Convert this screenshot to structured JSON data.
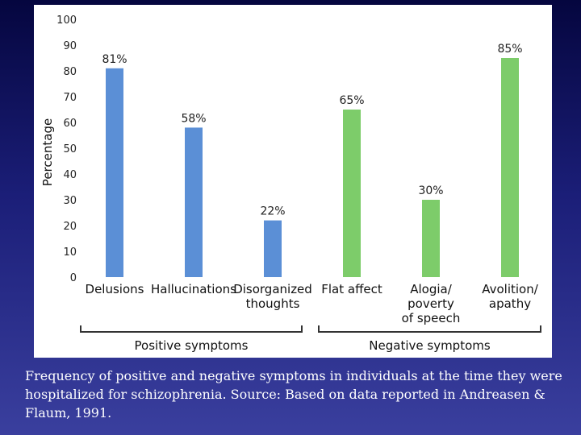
{
  "caption": "Frequency of positive and negative symptoms in individuals at the time they were hospitalized for schizophrenia. Source: Based on data  reported in Andreasen & Flaum, 1991.",
  "chart_data": {
    "type": "bar",
    "categories": [
      [
        "Delusions"
      ],
      [
        "Hallucinations"
      ],
      [
        "Disorganized",
        "thoughts"
      ],
      [
        "Flat affect"
      ],
      [
        "Alogia/",
        "poverty",
        "of speech"
      ],
      [
        "Avolition/",
        "apathy"
      ]
    ],
    "values": [
      81,
      58,
      22,
      65,
      30,
      85
    ],
    "value_labels": [
      "81%",
      "58%",
      "22%",
      "65%",
      "30%",
      "85%"
    ],
    "bar_colors": [
      "#5b8fd6",
      "#5b8fd6",
      "#5b8fd6",
      "#7dcc6a",
      "#7dcc6a",
      "#7dcc6a"
    ],
    "ylabel": "Percentage",
    "ylim": [
      0,
      100
    ],
    "yticks": [
      0,
      10,
      20,
      30,
      40,
      50,
      60,
      70,
      80,
      90,
      100
    ],
    "grid": false,
    "groups": [
      {
        "label": "Positive symptoms",
        "categories": [
          0,
          1,
          2
        ]
      },
      {
        "label": "Negative symptoms",
        "categories": [
          3,
          4,
          5
        ]
      }
    ]
  }
}
